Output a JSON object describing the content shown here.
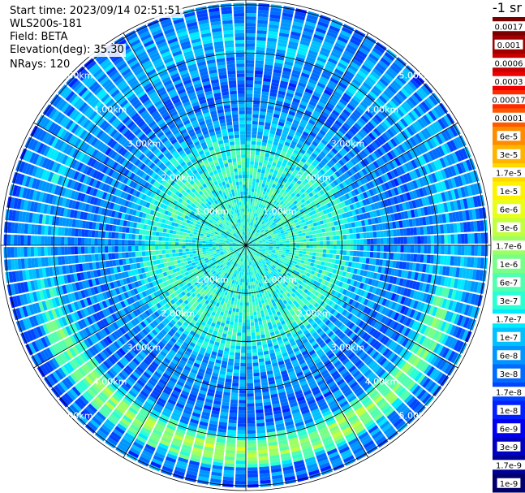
{
  "header": {
    "start_time": "Start time: 2023/09/14 02:51:51",
    "device": "WLS200s-181",
    "field": "Field: BETA",
    "elevation": "Elevation(deg): 35.30",
    "nrays": "NRays: 120"
  },
  "colorbar": {
    "unit": "-1 sr",
    "labels": [
      "0.0017",
      "0.001",
      "0.0006",
      "0.0003",
      "0.00017",
      "0.0001",
      "6e-5",
      "3e-5",
      "1.7e-5",
      "1e-5",
      "6e-6",
      "3e-6",
      "1.7e-6",
      "1e-6",
      "6e-7",
      "3e-7",
      "1.7e-7",
      "1e-7",
      "6e-8",
      "3e-8",
      "1.7e-8",
      "1e-8",
      "6e-9",
      "3e-9",
      "1.7e-9",
      "1e-9"
    ],
    "colors": [
      "#7a0000",
      "#a00000",
      "#c80000",
      "#ee0000",
      "#ff2a00",
      "#ff5a00",
      "#ff8c00",
      "#ffb400",
      "#ffd800",
      "#fff200",
      "#e8ff1a",
      "#c2ff3e",
      "#9cff64",
      "#78ff88",
      "#52ffae",
      "#2affd4",
      "#00eaff",
      "#00c0ff",
      "#0096ff",
      "#006cff",
      "#0044ff",
      "#0020ff",
      "#0000ee",
      "#0000c0",
      "#000096",
      "#00006c"
    ]
  },
  "chart_data": {
    "type": "heatmap",
    "projection": "polar",
    "field": "BETA",
    "nrays": 120,
    "range_rings_km": [
      1.0,
      2.0,
      3.0,
      4.0,
      5.0
    ],
    "ring_labels": [
      "1.00km",
      "2.00km",
      "3.00km",
      "4.00km",
      "5.00km"
    ],
    "max_range_km": 5.1,
    "spoke_angles_deg": [
      0,
      30,
      60,
      90,
      120,
      150
    ],
    "value_range": [
      1e-09,
      0.0017
    ],
    "scale": "log",
    "dominant_value_by_range_km": [
      [
        0.0,
        3e-07
      ],
      [
        2.0,
        3e-07
      ],
      [
        2.5,
        6e-08
      ],
      [
        3.5,
        3e-08
      ],
      [
        4.2,
        1e-07
      ],
      [
        5.0,
        3e-08
      ]
    ],
    "highlight": "enhanced band (~1e-6) around 4.3km range in the southern sector"
  }
}
